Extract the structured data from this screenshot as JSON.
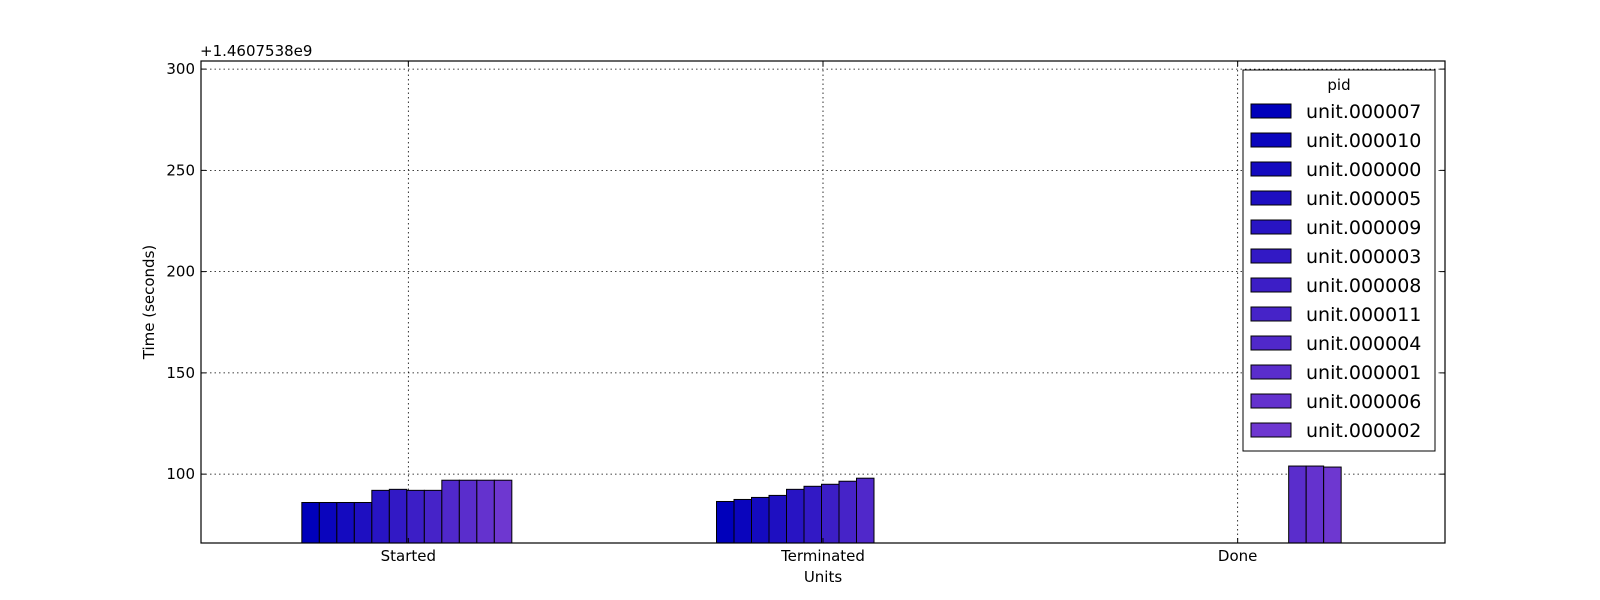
{
  "chart_data": {
    "type": "bar",
    "title": "",
    "xlabel": "Units",
    "ylabel": "Time (seconds)",
    "y_offset_text": "+1.4607538e9",
    "ylim": [
      66,
      304
    ],
    "yticks": [
      100,
      150,
      200,
      250,
      300
    ],
    "categories": [
      "Started",
      "Terminated",
      "Done"
    ],
    "grid": true,
    "legend": {
      "title": "pid",
      "position": "top-right"
    },
    "series": [
      {
        "name": "unit.000007",
        "color": "#0000bb",
        "values": [
          86,
          86.5,
          null
        ]
      },
      {
        "name": "unit.000010",
        "color": "#0a05bd",
        "values": [
          86,
          87.5,
          null
        ]
      },
      {
        "name": "unit.000000",
        "color": "#140abf",
        "values": [
          86,
          88.5,
          null
        ]
      },
      {
        "name": "unit.000005",
        "color": "#1e0fc1",
        "values": [
          86,
          89.5,
          null
        ]
      },
      {
        "name": "unit.000009",
        "color": "#2814c3",
        "values": [
          92,
          92.5,
          null
        ]
      },
      {
        "name": "unit.000003",
        "color": "#3219c5",
        "values": [
          92.5,
          94,
          null
        ]
      },
      {
        "name": "unit.000008",
        "color": "#3c1ec6",
        "values": [
          92,
          95,
          null
        ]
      },
      {
        "name": "unit.000011",
        "color": "#4623c8",
        "values": [
          92,
          96.5,
          null
        ]
      },
      {
        "name": "unit.000004",
        "color": "#5028ca",
        "values": [
          97,
          98,
          null
        ]
      },
      {
        "name": "unit.000001",
        "color": "#5a2dcc",
        "values": [
          97,
          null,
          104
        ]
      },
      {
        "name": "unit.000006",
        "color": "#6432ce",
        "values": [
          97,
          null,
          104
        ]
      },
      {
        "name": "unit.000002",
        "color": "#6e37d0",
        "values": [
          97,
          null,
          103.5
        ]
      }
    ]
  }
}
